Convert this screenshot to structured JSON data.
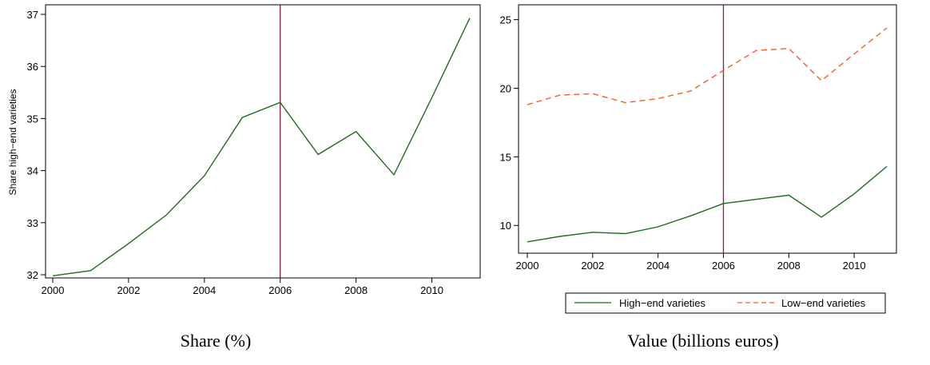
{
  "colors": {
    "high_end": "#1f6b1f",
    "low_end": "#ff5a1f",
    "vline": "#8b1a4b",
    "axis": "#000000"
  },
  "chart_data": [
    {
      "type": "line",
      "caption": "Share (%)",
      "ylabel": "Share high−end varieties",
      "xlabel": "",
      "xlim": [
        2000,
        2011
      ],
      "ylim": [
        32,
        37
      ],
      "x_ticks": [
        "2000",
        "2002",
        "2004",
        "2006",
        "2008",
        "2010"
      ],
      "y_ticks": [
        "32",
        "33",
        "34",
        "35",
        "36",
        "37"
      ],
      "vline_x": 2006,
      "x": [
        2000,
        2001,
        2002,
        2003,
        2004,
        2005,
        2006,
        2007,
        2008,
        2009,
        2010,
        2011
      ],
      "series": [
        {
          "key": "high_end",
          "style": "solid",
          "values": [
            31.98,
            32.08,
            32.6,
            33.15,
            33.9,
            35.02,
            35.31,
            34.31,
            34.75,
            33.92,
            35.4,
            36.93
          ]
        }
      ]
    },
    {
      "type": "line",
      "caption": "Value (billions euros)",
      "ylabel": "",
      "xlabel": "",
      "xlim": [
        2000,
        2011
      ],
      "ylim": [
        8.5,
        25.5
      ],
      "x_ticks": [
        "2000",
        "2002",
        "2004",
        "2006",
        "2008",
        "2010"
      ],
      "y_ticks": [
        "10",
        "15",
        "20",
        "25"
      ],
      "y_tick_values": [
        10,
        15,
        20,
        25
      ],
      "vline_x": 2006,
      "x": [
        2000,
        2001,
        2002,
        2003,
        2004,
        2005,
        2006,
        2007,
        2008,
        2009,
        2010,
        2011
      ],
      "legend_position": "bottom",
      "series": [
        {
          "key": "high_end",
          "name": "High−end varieties",
          "style": "solid",
          "values": [
            8.8,
            9.2,
            9.5,
            9.4,
            9.9,
            10.7,
            11.6,
            11.9,
            12.2,
            10.6,
            12.3,
            14.3
          ]
        },
        {
          "key": "low_end",
          "name": "Low−end varieties",
          "style": "dashed",
          "values": [
            18.8,
            19.5,
            19.6,
            18.95,
            19.25,
            19.8,
            21.3,
            22.75,
            22.9,
            20.55,
            22.5,
            24.4
          ]
        }
      ]
    }
  ]
}
